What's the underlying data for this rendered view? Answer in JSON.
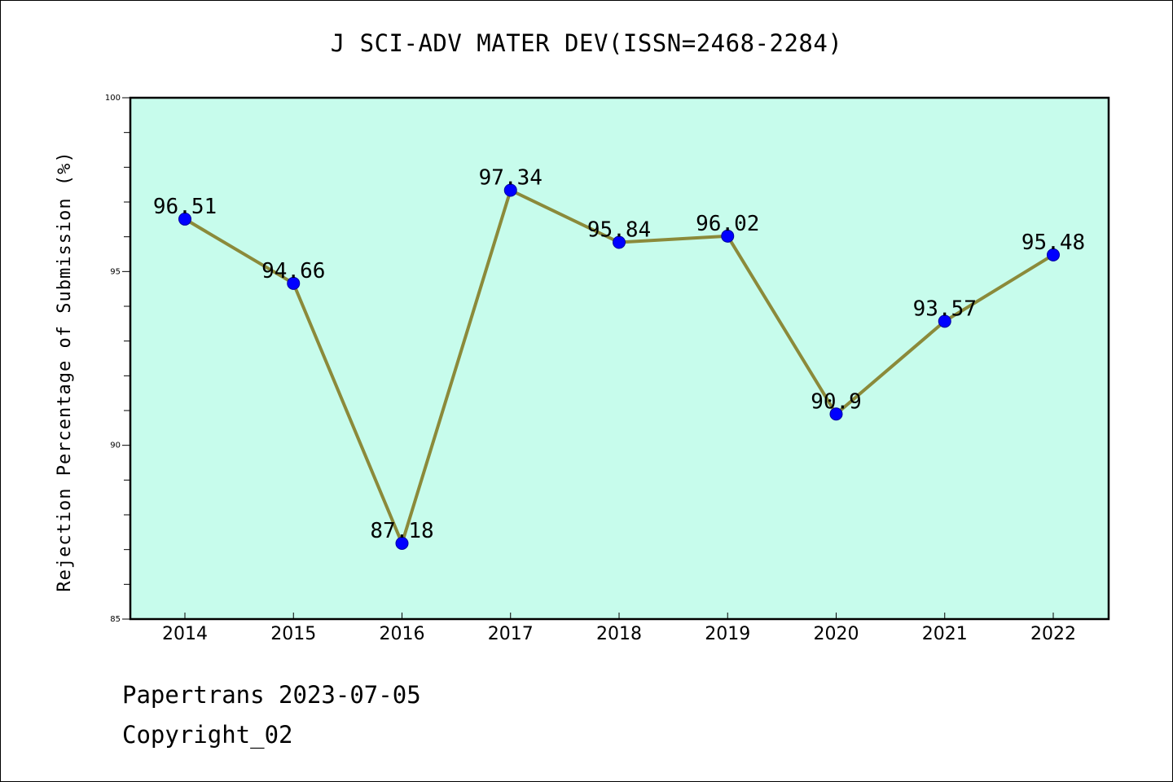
{
  "chart_data": {
    "type": "line",
    "title": "J SCI-ADV MATER DEV(ISSN=2468-2284)",
    "xlabel": "",
    "ylabel": "Rejection Percentage of Submission (%)",
    "categories": [
      "2014",
      "2015",
      "2016",
      "2017",
      "2018",
      "2019",
      "2020",
      "2021",
      "2022"
    ],
    "series": [
      {
        "values": [
          96.51,
          94.66,
          87.18,
          97.34,
          95.84,
          96.02,
          90.9,
          93.57,
          95.48
        ],
        "labels": [
          "96.51",
          "94.66",
          "87.18",
          "97.34",
          "95.84",
          "96.02",
          "90.9",
          "93.57",
          "95.48"
        ]
      }
    ],
    "ylim": [
      85,
      100
    ],
    "yticks": [
      85,
      90,
      95,
      100
    ],
    "yticks_minor_step": 1,
    "grid": false,
    "legend": "none",
    "colors": {
      "plot_background": "#c7fcec",
      "line": "#8b8a3a",
      "marker": "#0000ff"
    }
  },
  "footer": {
    "line1": "Papertrans 2023-07-05",
    "line2": "Copyright_02"
  }
}
